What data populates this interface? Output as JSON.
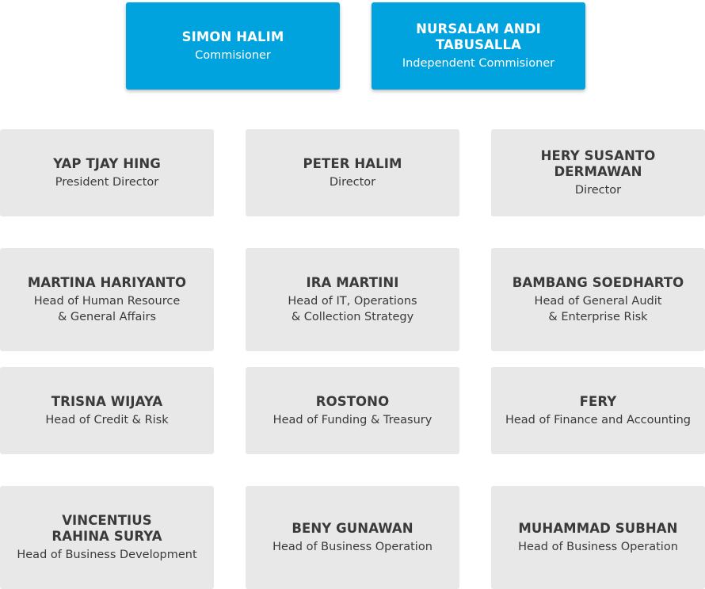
{
  "commissioners": [
    {
      "name": "SIMON HALIM",
      "role": "Commisioner"
    },
    {
      "name": "NURSALAM ANDI\nTABUSALLA",
      "role": "Independent Commisioner"
    }
  ],
  "directors": [
    {
      "name": "YAP TJAY HING",
      "role": "President Director"
    },
    {
      "name": "PETER HALIM",
      "role": "Director"
    },
    {
      "name": "HERY SUSANTO\nDERMAWAN",
      "role": "Director"
    }
  ],
  "heads": [
    {
      "name": "MARTINA HARIYANTO",
      "role": "Head of Human Resource\n& General Affairs"
    },
    {
      "name": "IRA MARTINI",
      "role": "Head of IT, Operations\n& Collection Strategy"
    },
    {
      "name": "BAMBANG SOEDHARTO",
      "role": "Head of General Audit\n& Enterprise Risk"
    },
    {
      "name": "TRISNA WIJAYA",
      "role": "Head of Credit & Risk"
    },
    {
      "name": "ROSTONO",
      "role": "Head of Funding & Treasury"
    },
    {
      "name": "FERY",
      "role": "Head of Finance and Accounting"
    },
    {
      "name": "VINCENTIUS\nRAHINA SURYA",
      "role": "Head of Business Development"
    },
    {
      "name": "BENY GUNAWAN",
      "role": "Head of Business Operation"
    },
    {
      "name": "MUHAMMAD SUBHAN",
      "role": "Head of Business Operation"
    }
  ]
}
